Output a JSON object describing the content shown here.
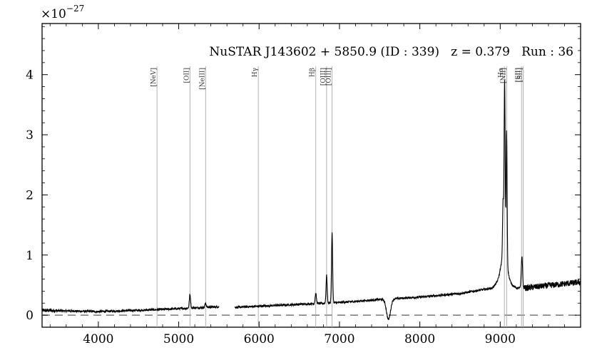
{
  "chart_data": {
    "type": "line",
    "title": "NuSTAR J143602 + 5850.9 (ID : 339)   z = 0.379   Run : 36",
    "xlabel": "",
    "ylabel": "",
    "y_multiplier": "×10",
    "y_multiplier_exp": "−27",
    "xlim": [
      3300,
      10000
    ],
    "ylim": [
      -0.2,
      4.85
    ],
    "x_ticks": [
      4000,
      5000,
      6000,
      7000,
      8000,
      9000
    ],
    "y_ticks": [
      0,
      1,
      2,
      3,
      4
    ],
    "grid": false,
    "zero_line": 0,
    "gap": [
      5500,
      5700
    ],
    "emission_lines": [
      {
        "label": "[NeV]",
        "x": 4730
      },
      {
        "label": "[OII]",
        "x": 5140
      },
      {
        "label": "[NeIII]",
        "x": 5335
      },
      {
        "label": "Hγ",
        "x": 5990
      },
      {
        "label": "Hβ",
        "x": 6705
      },
      {
        "label": "[OIII]",
        "x": 6840
      },
      {
        "label": "[OIII]",
        "x": 6908
      },
      {
        "label": "Hα",
        "x": 9052
      },
      {
        "label": "[NII]",
        "x": 9080
      },
      {
        "label": "[SII]",
        "x": 9265
      },
      {
        "label": "[SII]",
        "x": 9285
      }
    ],
    "series": [
      {
        "continuum": [
          [
            3300,
            0.08
          ],
          [
            4000,
            0.06
          ],
          [
            4700,
            0.09
          ],
          [
            5500,
            0.14
          ],
          [
            5700,
            0.13
          ],
          [
            6500,
            0.18
          ],
          [
            7000,
            0.21
          ],
          [
            7500,
            0.26
          ],
          [
            8000,
            0.3
          ],
          [
            8500,
            0.36
          ],
          [
            8900,
            0.45
          ],
          [
            9000,
            0.6
          ],
          [
            9100,
            0.55
          ],
          [
            9200,
            0.45
          ],
          [
            9300,
            0.45
          ],
          [
            10000,
            0.55
          ]
        ],
        "peaks": [
          {
            "x": 5140,
            "y": 0.34,
            "w": 8
          },
          {
            "x": 5335,
            "y": 0.2,
            "w": 8
          },
          {
            "x": 6705,
            "y": 0.36,
            "w": 8
          },
          {
            "x": 6840,
            "y": 0.66,
            "w": 7
          },
          {
            "x": 6908,
            "y": 1.37,
            "w": 7
          },
          {
            "x": 9035,
            "y": 1.47,
            "w": 6
          },
          {
            "x": 9055,
            "y": 3.46,
            "w": 7
          },
          {
            "x": 9080,
            "y": 2.76,
            "w": 6
          },
          {
            "x": 9270,
            "y": 0.98,
            "w": 8
          }
        ],
        "dips": [
          {
            "x": 7610,
            "y": -0.07,
            "w": 25
          }
        ]
      }
    ]
  }
}
